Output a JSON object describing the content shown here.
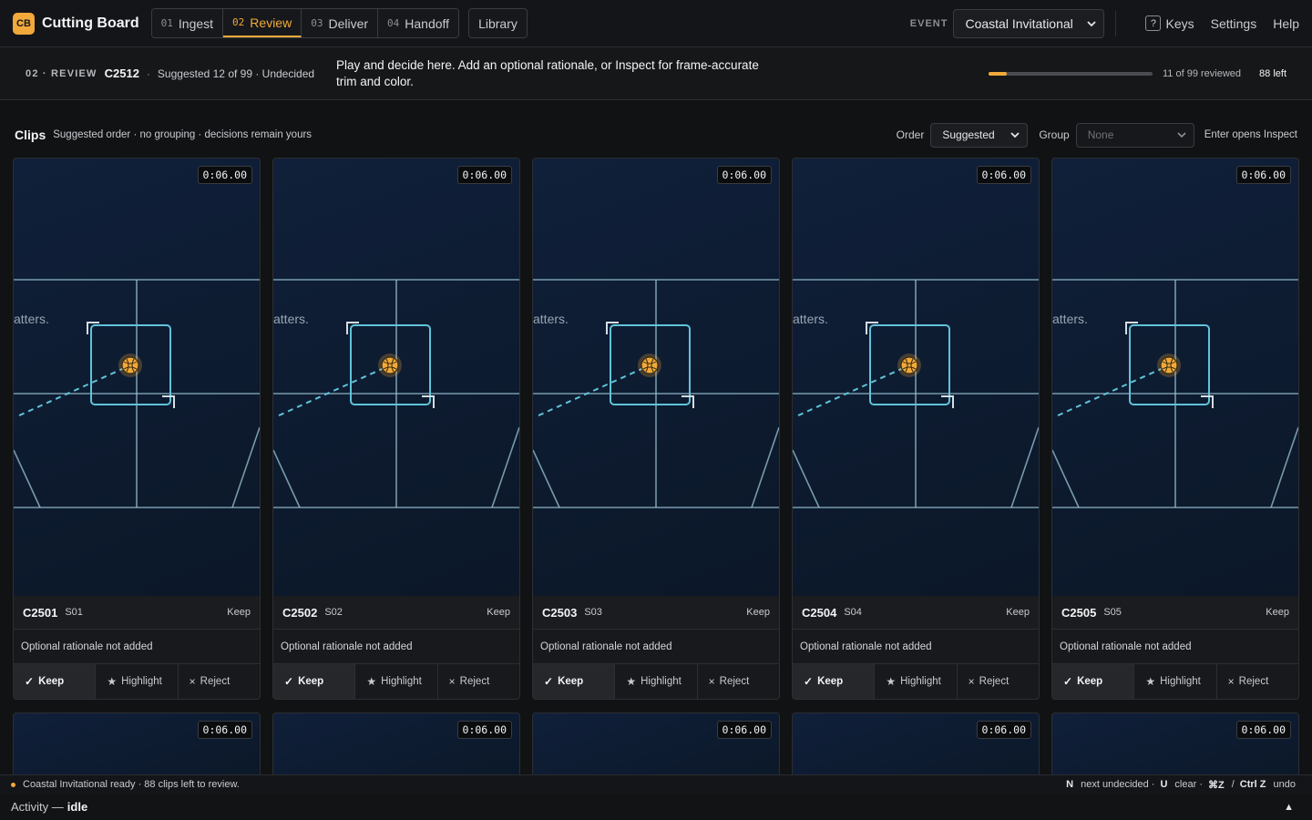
{
  "app": {
    "logo": "CB",
    "title": "Cutting Board"
  },
  "steps": [
    {
      "num": "01",
      "label": "Ingest",
      "active": false
    },
    {
      "num": "02",
      "label": "Review",
      "active": true
    },
    {
      "num": "03",
      "label": "Deliver",
      "active": false
    },
    {
      "num": "04",
      "label": "Handoff",
      "active": false
    }
  ],
  "library_label": "Library",
  "event": {
    "label": "EVENT",
    "value": "Coastal Invitational"
  },
  "top_links": {
    "keys_icon": "?",
    "keys": "Keys",
    "settings": "Settings",
    "help": "Help"
  },
  "subheader": {
    "stage": "02 · REVIEW",
    "clip": "C2512",
    "sep": "·",
    "suggested": "Suggested 12 of 99 · Undecided",
    "instruction": "Play and decide here. Add an optional rationale, or Inspect for frame-accurate trim and color.",
    "reviewed": "11 of 99 reviewed",
    "reviewed_fraction": 0.111,
    "left": "88 left"
  },
  "clips_header": {
    "title": "Clips",
    "subtitle": "Suggested order · no grouping · decisions remain yours",
    "order_label": "Order",
    "order_value": "Suggested",
    "group_label": "Group",
    "group_value": "None",
    "enter_hint": "Enter opens Inspect"
  },
  "clips": [
    {
      "id": "C2501",
      "scene": "S01",
      "timecode": "0:06.00",
      "state": "Keep",
      "rationale": "Optional rationale not added",
      "overlay_text": "atters."
    },
    {
      "id": "C2502",
      "scene": "S02",
      "timecode": "0:06.00",
      "state": "Keep",
      "rationale": "Optional rationale not added",
      "overlay_text": "atters."
    },
    {
      "id": "C2503",
      "scene": "S03",
      "timecode": "0:06.00",
      "state": "Keep",
      "rationale": "Optional rationale not added",
      "overlay_text": "atters."
    },
    {
      "id": "C2504",
      "scene": "S04",
      "timecode": "0:06.00",
      "state": "Keep",
      "rationale": "Optional rationale not added",
      "overlay_text": "atters."
    },
    {
      "id": "C2505",
      "scene": "S05",
      "timecode": "0:06.00",
      "state": "Keep",
      "rationale": "Optional rationale not added",
      "overlay_text": "atters."
    }
  ],
  "next_row_timecodes": [
    "0:06.00",
    "0:06.00",
    "0:06.00",
    "0:06.00",
    "0:06.00"
  ],
  "actions": {
    "keep": "Keep",
    "highlight": "Highlight",
    "reject": "Reject",
    "keep_icon": "✓",
    "highlight_icon": "★",
    "reject_icon": "×"
  },
  "status": {
    "message": "Coastal Invitational ready · 88 clips left to review.",
    "shortcuts": [
      {
        "key": "N",
        "text": "next undecided ·"
      },
      {
        "key": "U",
        "text": "clear ·"
      },
      {
        "key": "⌘Z",
        "text": "/"
      },
      {
        "key": "Ctrl Z",
        "text": "undo"
      }
    ]
  },
  "activity": {
    "label": "Activity —",
    "state": "idle",
    "toggle": "▲"
  },
  "colors": {
    "accent": "#f0a93a",
    "court_line": "#9cc6d6",
    "focus_box": "#5fc4d9",
    "ball": "#f0a93a"
  }
}
